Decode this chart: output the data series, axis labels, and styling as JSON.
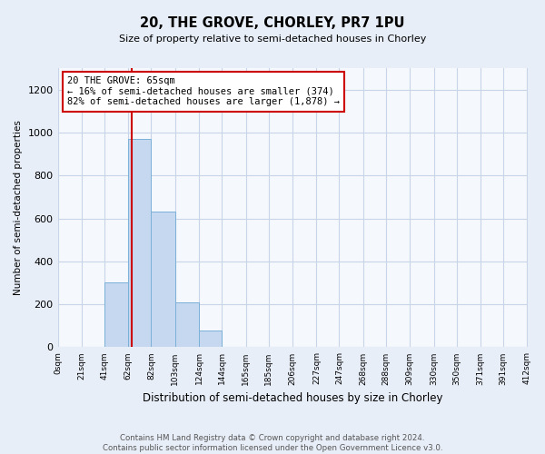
{
  "title": "20, THE GROVE, CHORLEY, PR7 1PU",
  "subtitle": "Size of property relative to semi-detached houses in Chorley",
  "xlabel": "Distribution of semi-detached houses by size in Chorley",
  "ylabel": "Number of semi-detached properties",
  "bin_labels": [
    "0sqm",
    "21sqm",
    "41sqm",
    "62sqm",
    "82sqm",
    "103sqm",
    "124sqm",
    "144sqm",
    "165sqm",
    "185sqm",
    "206sqm",
    "227sqm",
    "247sqm",
    "268sqm",
    "288sqm",
    "309sqm",
    "330sqm",
    "350sqm",
    "371sqm",
    "391sqm",
    "412sqm"
  ],
  "bin_edges": [
    0,
    21,
    41,
    62,
    82,
    103,
    124,
    144,
    165,
    185,
    206,
    227,
    247,
    268,
    288,
    309,
    330,
    350,
    371,
    391,
    412
  ],
  "bar_values": [
    0,
    0,
    300,
    970,
    630,
    210,
    80,
    0,
    0,
    0,
    0,
    0,
    0,
    0,
    0,
    0,
    0,
    0,
    0,
    0
  ],
  "bar_color": "#c5d8f0",
  "bar_edge_color": "#7ab0d8",
  "property_line_x": 65,
  "property_line_color": "#cc0000",
  "annotation_text": "20 THE GROVE: 65sqm\n← 16% of semi-detached houses are smaller (374)\n82% of semi-detached houses are larger (1,878) →",
  "annotation_box_color": "#cc0000",
  "ylim": [
    0,
    1300
  ],
  "yticks": [
    0,
    200,
    400,
    600,
    800,
    1000,
    1200
  ],
  "footer_text": "Contains HM Land Registry data © Crown copyright and database right 2024.\nContains public sector information licensed under the Open Government Licence v3.0.",
  "bg_color": "#e8eef8",
  "plot_bg_color": "#f5f8fd",
  "grid_color": "#c8d4e8"
}
